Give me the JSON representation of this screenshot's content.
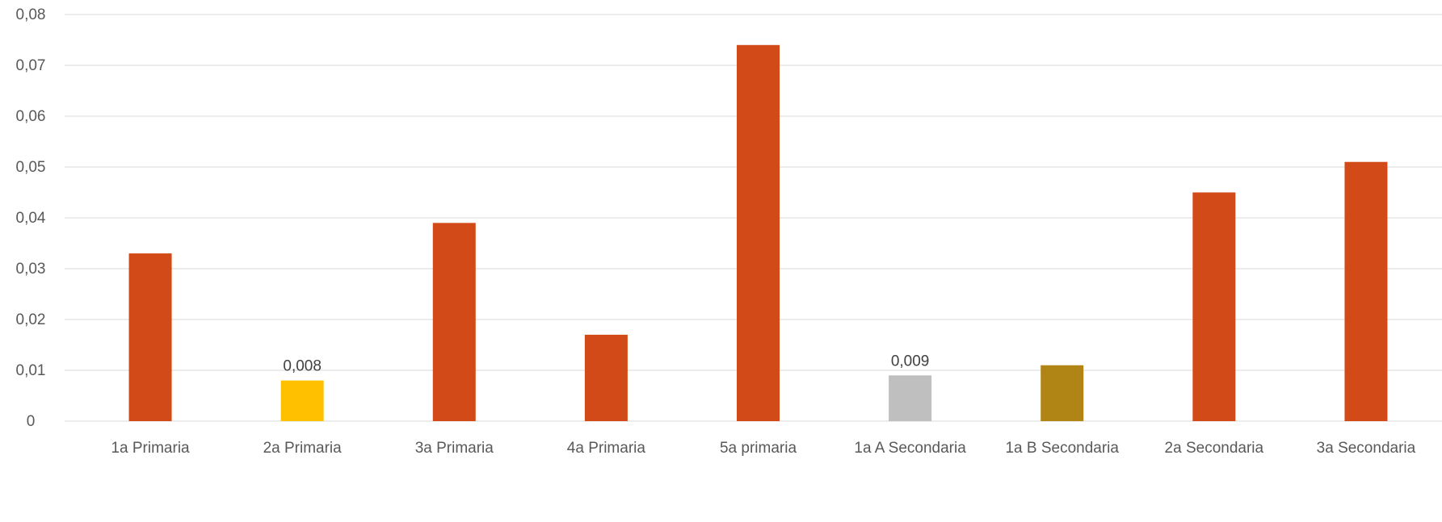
{
  "chart_data": {
    "type": "bar",
    "categories": [
      "1a Primaria",
      "2a Primaria",
      "3a Primaria",
      "4a Primaria",
      "5a primaria",
      "1a A Secondaria",
      "1a B Secondaria",
      "2a Secondaria",
      "3a Secondaria"
    ],
    "values": [
      0.033,
      0.008,
      0.039,
      0.017,
      0.074,
      0.009,
      0.011,
      0.045,
      0.051
    ],
    "bar_colors": [
      "#d24a17",
      "#ffc000",
      "#d24a17",
      "#d24a17",
      "#d24a17",
      "#bfbfbf",
      "#b08516",
      "#d24a17",
      "#d24a17"
    ],
    "data_labels": [
      "",
      "0,008",
      "",
      "",
      "",
      "0,009",
      "",
      "",
      ""
    ],
    "yticks": [
      "0",
      "0,01",
      "0,02",
      "0,03",
      "0,04",
      "0,05",
      "0,06",
      "0,07",
      "0,08"
    ],
    "ylim": [
      0,
      0.08
    ],
    "grid": true
  }
}
